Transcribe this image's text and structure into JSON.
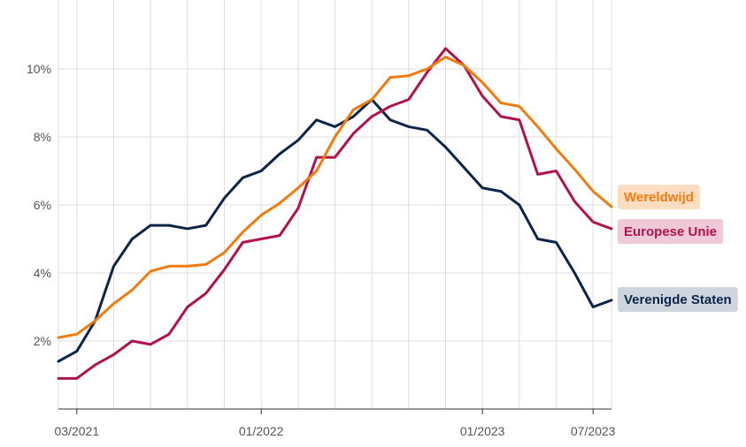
{
  "chart_data": {
    "type": "line",
    "x": [
      "2021-02",
      "2021-03",
      "2021-04",
      "2021-05",
      "2021-06",
      "2021-07",
      "2021-08",
      "2021-09",
      "2021-10",
      "2021-11",
      "2021-12",
      "2022-01",
      "2022-02",
      "2022-03",
      "2022-04",
      "2022-05",
      "2022-06",
      "2022-07",
      "2022-08",
      "2022-09",
      "2022-10",
      "2022-11",
      "2022-12",
      "2023-01",
      "2023-02",
      "2023-03",
      "2023-04",
      "2023-05",
      "2023-06",
      "2023-07",
      "2023-08"
    ],
    "series": [
      {
        "name": "Wereldwijd",
        "color": "#F07B0F",
        "label_bg": "#FBDDC2",
        "values": [
          2.1,
          2.2,
          2.6,
          3.1,
          3.5,
          4.05,
          4.2,
          4.2,
          4.25,
          4.6,
          5.2,
          5.7,
          6.05,
          6.5,
          7.0,
          8.0,
          8.8,
          9.1,
          9.75,
          9.8,
          10.0,
          10.35,
          10.1,
          9.6,
          9.0,
          8.9,
          8.3,
          7.65,
          7.05,
          6.4,
          5.95
        ]
      },
      {
        "name": "Europese Unie",
        "color": "#B0124E",
        "label_bg": "#EFC9D6",
        "values": [
          0.9,
          0.9,
          1.3,
          1.6,
          2.0,
          1.9,
          2.2,
          3.0,
          3.4,
          4.1,
          4.9,
          5.0,
          5.1,
          5.9,
          7.4,
          7.4,
          8.1,
          8.6,
          8.9,
          9.1,
          9.9,
          10.6,
          10.1,
          9.2,
          8.6,
          8.5,
          6.9,
          7.0,
          6.1,
          5.5,
          5.3
        ]
      },
      {
        "name": "Verenigde Staten",
        "color": "#0B2447",
        "label_bg": "#CED5DE",
        "values": [
          1.4,
          1.7,
          2.6,
          4.2,
          5.0,
          5.4,
          5.4,
          5.3,
          5.4,
          6.2,
          6.8,
          7.0,
          7.5,
          7.9,
          8.5,
          8.3,
          8.6,
          9.1,
          8.5,
          8.3,
          8.2,
          7.7,
          7.1,
          6.5,
          6.4,
          6.0,
          5.0,
          4.9,
          4.0,
          3.0,
          3.2
        ]
      }
    ],
    "y_ticks": [
      2,
      4,
      6,
      8,
      10
    ],
    "y_tick_labels": [
      "2%",
      "4%",
      "6%",
      "8%",
      "10%"
    ],
    "x_tick_labels": [
      {
        "index": 1,
        "label": "03/2021"
      },
      {
        "index": 11,
        "label": "01/2022"
      },
      {
        "index": 23,
        "label": "01/2023"
      },
      {
        "index": 29,
        "label": "07/2023"
      }
    ],
    "ylim": [
      0,
      11.8
    ],
    "grid": true,
    "legend": "right, at line ends"
  }
}
